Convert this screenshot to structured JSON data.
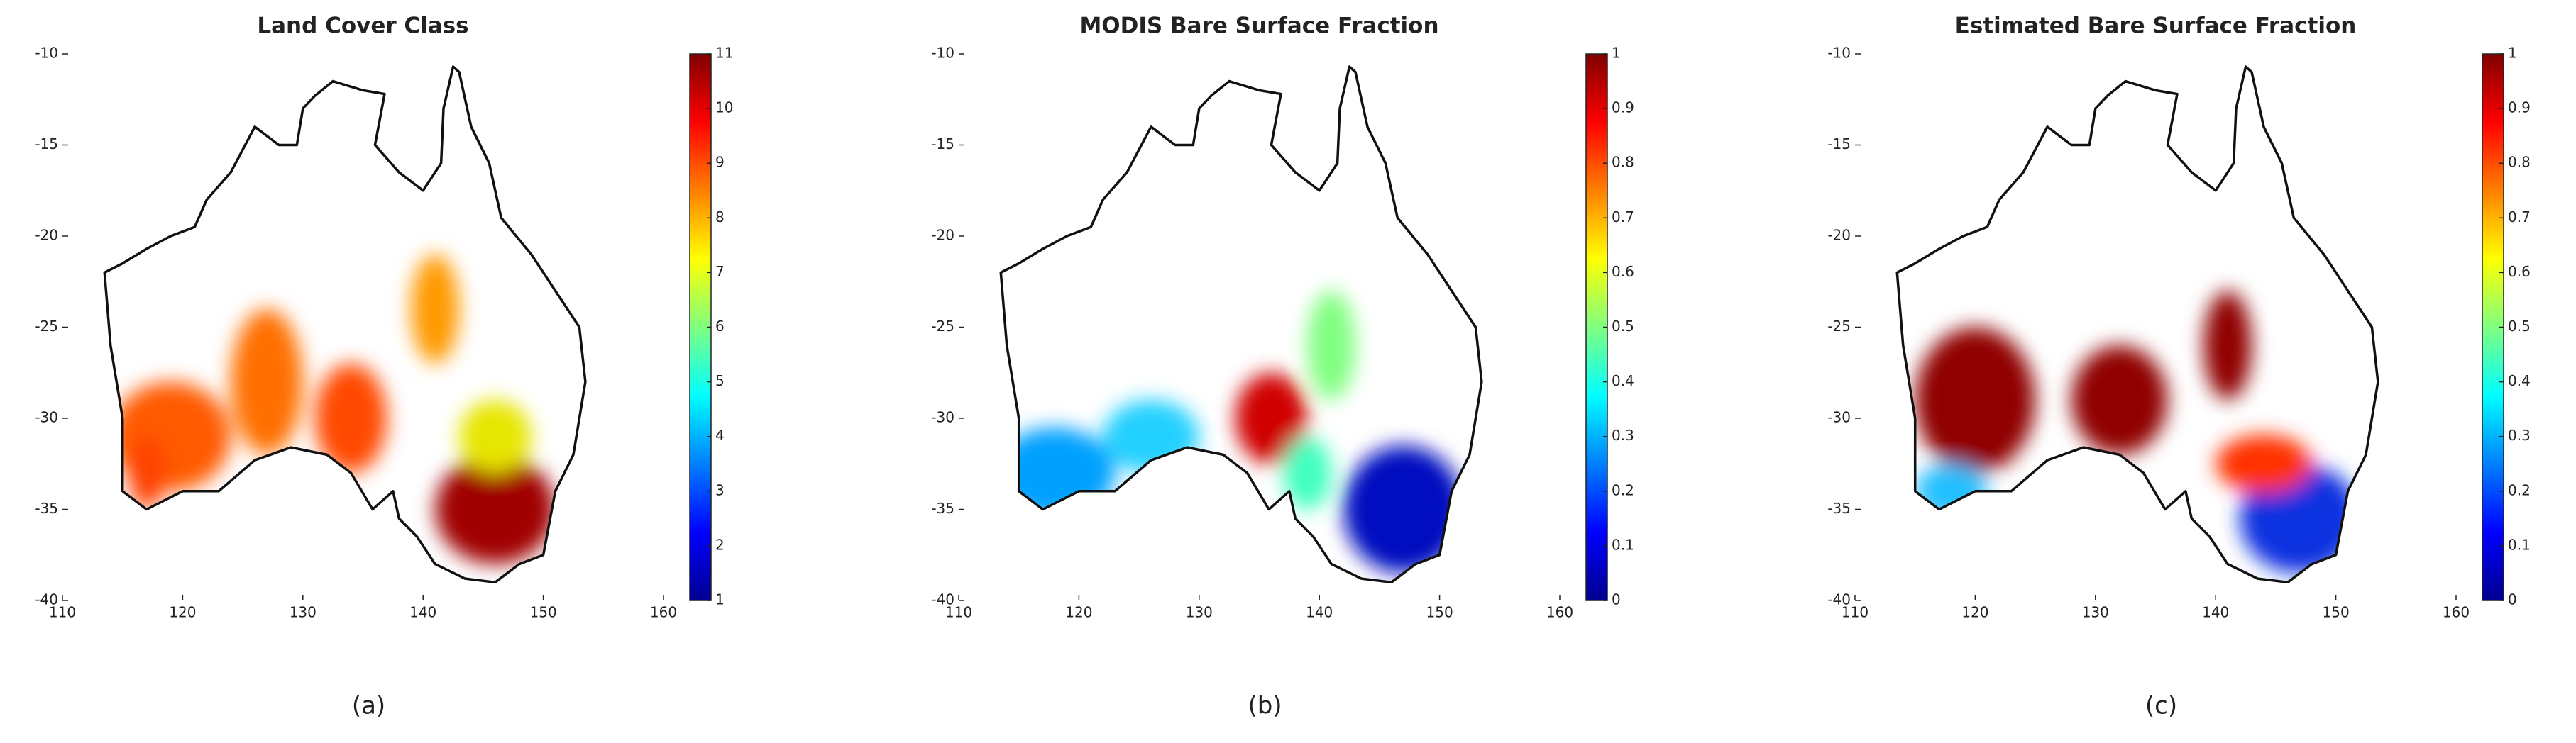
{
  "chart_data": [
    {
      "type": "map",
      "title": "Land Cover Class",
      "caption": "(a)",
      "xlim": [
        110,
        160
      ],
      "xticks": [
        110,
        120,
        130,
        140,
        150,
        160
      ],
      "ylim": [
        -40,
        -10
      ],
      "yticks": [
        -10,
        -15,
        -20,
        -25,
        -30,
        -35,
        -40
      ],
      "clim": [
        1,
        11
      ],
      "cticks": [
        1,
        2,
        3,
        4,
        5,
        6,
        7,
        8,
        9,
        10,
        11
      ]
    },
    {
      "type": "map",
      "title": "MODIS Bare Surface Fraction",
      "caption": "(b)",
      "xlim": [
        110,
        160
      ],
      "xticks": [
        110,
        120,
        130,
        140,
        150,
        160
      ],
      "ylim": [
        -40,
        -10
      ],
      "yticks": [
        -10,
        -15,
        -20,
        -25,
        -30,
        -35,
        -40
      ],
      "clim": [
        0,
        1
      ],
      "cticks": [
        0,
        0.1,
        0.2,
        0.3,
        0.4,
        0.5,
        0.6,
        0.7,
        0.8,
        0.9,
        1
      ]
    },
    {
      "type": "map",
      "title": "Estimated Bare Surface Fraction",
      "caption": "(c)",
      "xlim": [
        110,
        160
      ],
      "xticks": [
        110,
        120,
        130,
        140,
        150,
        160
      ],
      "ylim": [
        -40,
        -10
      ],
      "yticks": [
        -10,
        -15,
        -20,
        -25,
        -30,
        -35,
        -40
      ],
      "clim": [
        0,
        1
      ],
      "cticks": [
        0,
        0.1,
        0.2,
        0.3,
        0.4,
        0.5,
        0.6,
        0.7,
        0.8,
        0.9,
        1
      ]
    }
  ]
}
